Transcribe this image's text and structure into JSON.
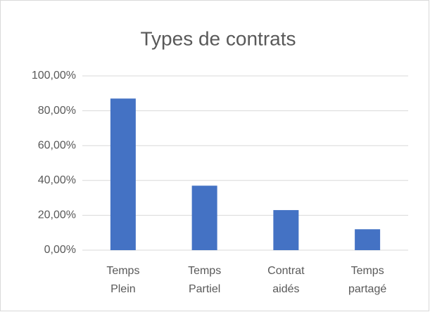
{
  "chart_data": {
    "type": "bar",
    "title": "Types de contrats",
    "categories": [
      "Temps Plein",
      "Temps Partiel",
      "Contrat aidés",
      "Temps partagé"
    ],
    "values": [
      87,
      37,
      23,
      12
    ],
    "color": "#4472c4",
    "ylim": [
      0,
      100
    ],
    "yticks": [
      {
        "value": 0,
        "label": "0,00%"
      },
      {
        "value": 20,
        "label": "20,00%"
      },
      {
        "value": 40,
        "label": "40,00%"
      },
      {
        "value": 60,
        "label": "60,00%"
      },
      {
        "value": 80,
        "label": "80,00%"
      },
      {
        "value": 100,
        "label": "100,00%"
      }
    ],
    "grid": true
  }
}
